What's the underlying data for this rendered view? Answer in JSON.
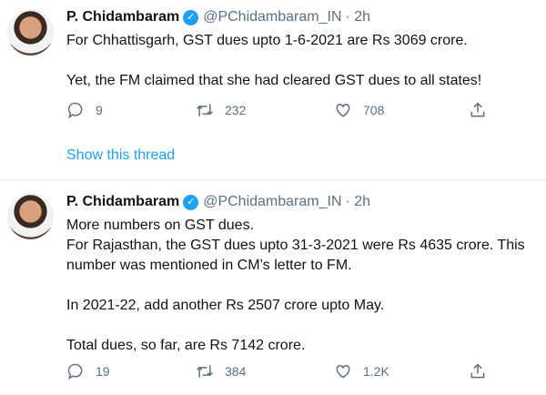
{
  "tweets": [
    {
      "name": "P. Chidambaram",
      "handle": "@PChidambaram_IN",
      "time": "· 2h",
      "text": "For Chhattisgarh, GST dues upto 1-6-2021 are Rs 3069 crore.\n\nYet, the FM claimed that she had cleared GST dues to all states!",
      "replies": "9",
      "retweets": "232",
      "likes": "708",
      "show_thread": "Show this thread"
    },
    {
      "name": "P. Chidambaram",
      "handle": "@PChidambaram_IN",
      "time": "· 2h",
      "text": "More numbers on GST dues.\nFor Rajasthan, the GST dues upto 31-3-2021 were Rs 4635 crore. This\nnumber was mentioned in CM’s letter to FM.\n\nIn 2021-22, add another Rs 2507 crore upto May.\n\nTotal dues, so far, are Rs 7142 crore.",
      "replies": "19",
      "retweets": "384",
      "likes": "1.2K"
    }
  ],
  "colors": {
    "accent": "#1da1f2",
    "muted": "#5b7083"
  },
  "icons": [
    "verified-badge-icon",
    "reply-icon",
    "retweet-icon",
    "like-icon",
    "share-icon"
  ]
}
